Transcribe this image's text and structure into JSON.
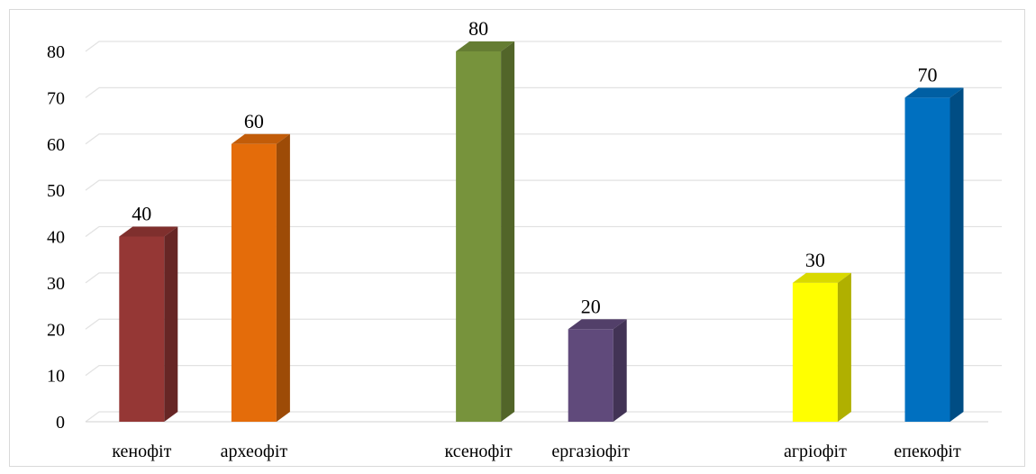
{
  "chart_data": {
    "type": "bar",
    "3d": true,
    "categories": [
      "кенофіт",
      "археофіт",
      "ксенофіт",
      "ергазіофіт",
      "агріофіт",
      "епекофіт"
    ],
    "values": [
      40,
      60,
      80,
      20,
      30,
      70
    ],
    "colors": [
      "#953735",
      "#E46C0A",
      "#77933C",
      "#604A7B",
      "#FFFF00",
      "#0070C0"
    ],
    "yticks": [
      0,
      10,
      20,
      30,
      40,
      50,
      60,
      70,
      80
    ],
    "ylim": [
      0,
      80
    ],
    "data_labels": true,
    "grid": true,
    "legend": "none"
  }
}
